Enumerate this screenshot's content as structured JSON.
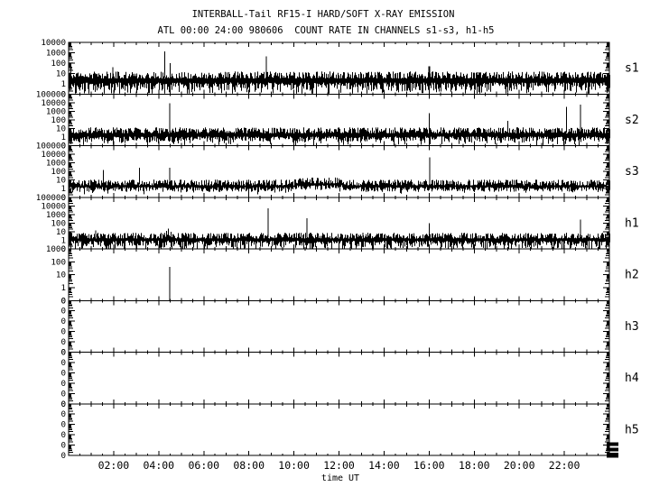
{
  "chart_data": {
    "type": "line",
    "title": "INTERBALL-Tail RF15-I HARD/SOFT X-RAY EMISSION",
    "subtitle": "ATL 00:00 24:00 980606  COUNT RATE IN CHANNELS s1-s3, h1-h5",
    "xlabel": "time UT",
    "x_axis": {
      "range_hours": [
        0,
        24
      ],
      "major_tick_hours": [
        2,
        4,
        6,
        8,
        10,
        12,
        14,
        16,
        18,
        20,
        22
      ],
      "major_tick_labels": [
        "02:00",
        "04:00",
        "06:00",
        "08:00",
        "10:00",
        "12:00",
        "14:00",
        "16:00",
        "18:00",
        "20:00",
        "22:00"
      ],
      "minor_tick_interval_hours": 0.5
    },
    "grid": false,
    "axis_color": "#000000",
    "background": "#ffffff",
    "corner_mark": true,
    "panels": [
      {
        "label": "s1",
        "y_tick_labels": [
          "10000",
          "1000",
          "100",
          "10",
          "1",
          "0"
        ],
        "top_value": 10000,
        "noise": {
          "low": 1.0,
          "high": 8,
          "down": 0.25,
          "down_p": 0.3,
          "seed": 11
        },
        "spikes": [
          [
            1.96,
            40
          ],
          [
            4.26,
            1400
          ],
          [
            4.5,
            95
          ],
          [
            8.77,
            460
          ],
          [
            16.0,
            50,
            2
          ]
        ],
        "tmark": [
          0.1,
          100
        ]
      },
      {
        "label": "s2",
        "y_tick_labels": [
          "100000",
          "10000",
          "1000",
          "100",
          "10",
          "1",
          "0"
        ],
        "top_value": 100000,
        "noise": {
          "low": 0.9,
          "high": 7,
          "down": 0.3,
          "down_p": 0.2,
          "seed": 22
        },
        "spikes": [
          [
            4.49,
            8300
          ],
          [
            16.0,
            600
          ],
          [
            19.5,
            80
          ],
          [
            22.1,
            3200
          ],
          [
            22.72,
            6200
          ]
        ]
      },
      {
        "label": "s3",
        "y_tick_labels": [
          "100000",
          "10000",
          "1000",
          "100",
          "10",
          "1",
          "0"
        ],
        "top_value": 100000,
        "noise": {
          "low": 1.2,
          "high": 6,
          "down": 0.6,
          "down_p": 0.12,
          "seed": 33
        },
        "bump": {
          "from": 10.0,
          "to": 12.2,
          "factor": 1.7
        },
        "spikes": [
          [
            1.55,
            140
          ],
          [
            3.15,
            260
          ],
          [
            4.49,
            260
          ],
          [
            16.03,
            4200
          ]
        ]
      },
      {
        "label": "h1",
        "y_tick_labels": [
          "100000",
          "10000",
          "1000",
          "100",
          "10",
          "1",
          "0"
        ],
        "top_value": 100000,
        "noise": {
          "low": 0.7,
          "high": 4,
          "down": 0.2,
          "down_p": 0.3,
          "seed": 44
        },
        "spikes": [
          [
            1.2,
            14
          ],
          [
            4.35,
            12
          ],
          [
            4.43,
            22
          ],
          [
            4.55,
            10
          ],
          [
            8.85,
            5000
          ],
          [
            10.57,
            370
          ],
          [
            13.06,
            8
          ],
          [
            16.0,
            93
          ],
          [
            22.72,
            240
          ]
        ]
      },
      {
        "label": "h2",
        "y_tick_labels": [
          "1000",
          "100",
          "10",
          "1",
          "0"
        ],
        "top_value": 1000,
        "noise": null,
        "spikes_from_bottom": true,
        "spikes": [
          [
            4.48,
            40
          ]
        ]
      },
      {
        "label": "h3",
        "y_tick_labels": [
          "0",
          "0",
          "0",
          "0",
          "0",
          "0"
        ],
        "top_value": null,
        "noise": null,
        "spikes": []
      },
      {
        "label": "h4",
        "y_tick_labels": [
          "0",
          "0",
          "0",
          "0",
          "0",
          "0"
        ],
        "top_value": null,
        "noise": null,
        "spikes": []
      },
      {
        "label": "h5",
        "y_tick_labels": [
          "0",
          "0",
          "0",
          "0",
          "0",
          "0"
        ],
        "top_value": null,
        "noise": null,
        "spikes": []
      }
    ]
  }
}
